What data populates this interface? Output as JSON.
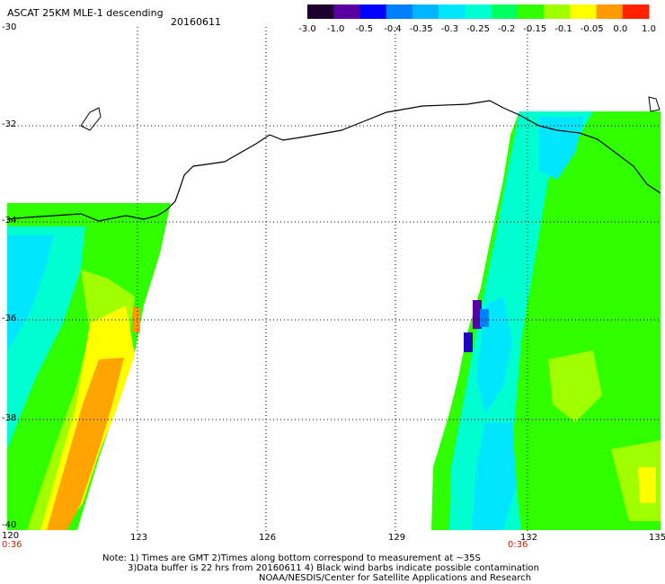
{
  "title": "ASCAT 25KM MLE-1 descending",
  "date": "20160611",
  "colorbar": {
    "labels": [
      "-3.0",
      "-1.0",
      "-0.5",
      "-0.4",
      "-0.35",
      "-0.3",
      "-0.25",
      "-0.2",
      "-0.15",
      "-0.1",
      "-0.05",
      "0.0",
      "1.0"
    ],
    "colors": [
      "#1e0030",
      "#5a00a0",
      "#0000ff",
      "#0080ff",
      "#00b4ff",
      "#00e6ff",
      "#00ffd0",
      "#00ff60",
      "#30ff00",
      "#a0ff00",
      "#ffff00",
      "#ff9a00",
      "#ff2000"
    ]
  },
  "axes": {
    "lon_labels": [
      "120",
      "123",
      "126",
      "129",
      "132",
      "135"
    ],
    "lat_labels": [
      "-30",
      "-32",
      "-34",
      "-36",
      "-38",
      "-40"
    ],
    "time_labels": [
      "0:36",
      "0:36"
    ]
  },
  "notes": {
    "line1": "Note: 1) Times are GMT 2)Times along bottom correspond to measurement at ~35S",
    "line2": "3)Data buffer is 22 hrs from 20160611 4) Black wind barbs indicate possible contamination",
    "line3": "NOAA/NESDIS/Center for Satellite Applications and Research"
  }
}
